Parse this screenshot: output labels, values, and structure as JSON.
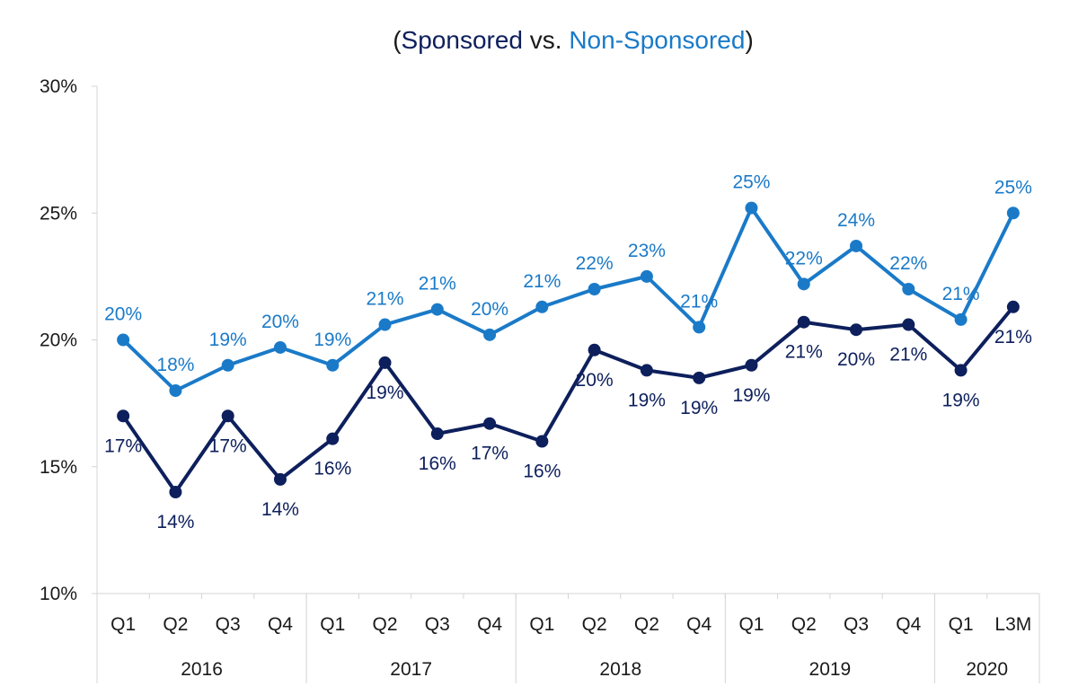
{
  "chart_data": {
    "type": "line",
    "title_parts": [
      "(",
      "Sponsored",
      " vs. ",
      "Non-Sponsored",
      ")"
    ],
    "xlabel": "",
    "ylabel": "",
    "ylim": [
      10,
      30
    ],
    "yticks": [
      "10%",
      "15%",
      "20%",
      "25%",
      "30%"
    ],
    "grid": false,
    "categories": [
      "Q1",
      "Q2",
      "Q3",
      "Q4",
      "Q1",
      "Q2",
      "Q3",
      "Q4",
      "Q1",
      "Q2",
      "Q2",
      "Q4",
      "Q1",
      "Q2",
      "Q3",
      "Q4",
      "Q1",
      "L3M"
    ],
    "year_groups": [
      {
        "label": "2016",
        "count": 4
      },
      {
        "label": "2017",
        "count": 4
      },
      {
        "label": "2018",
        "count": 4
      },
      {
        "label": "2019",
        "count": 4
      },
      {
        "label": "2020",
        "count": 2
      }
    ],
    "series": [
      {
        "name": "Non-Sponsored",
        "color": "#1a7ac8",
        "values": [
          20.0,
          18.0,
          19.0,
          19.7,
          19.0,
          20.6,
          21.2,
          20.2,
          21.3,
          22.0,
          22.5,
          20.5,
          25.2,
          22.2,
          23.7,
          22.0,
          20.8,
          25.0
        ],
        "labels": [
          "20%",
          "18%",
          "19%",
          "20%",
          "19%",
          "21%",
          "21%",
          "20%",
          "21%",
          "22%",
          "23%",
          "21%",
          "25%",
          "22%",
          "24%",
          "22%",
          "21%",
          "25%"
        ]
      },
      {
        "name": "Sponsored",
        "color": "#0d1f5c",
        "values": [
          17.0,
          14.0,
          17.0,
          14.5,
          16.1,
          19.1,
          16.3,
          16.7,
          16.0,
          19.6,
          18.8,
          18.5,
          19.0,
          20.7,
          20.4,
          20.6,
          18.8,
          21.3
        ],
        "labels": [
          "17%",
          "14%",
          "17%",
          "14%",
          "16%",
          "19%",
          "16%",
          "17%",
          "16%",
          "20%",
          "19%",
          "19%",
          "19%",
          "21%",
          "20%",
          "21%",
          "19%",
          "21%"
        ]
      }
    ]
  }
}
